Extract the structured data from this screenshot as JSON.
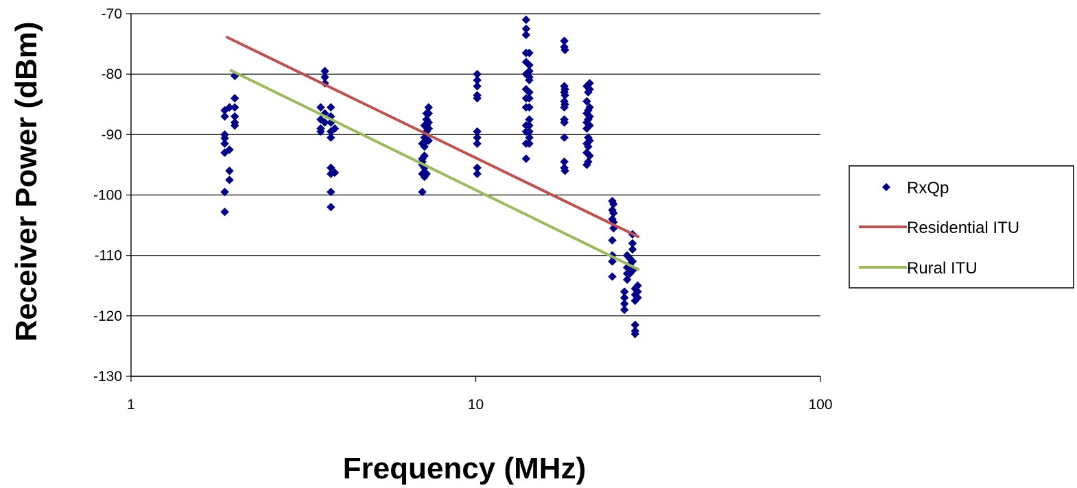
{
  "chart_data": {
    "type": "scatter",
    "xlabel": "Frequency (MHz)",
    "ylabel": "Receiver Power (dBm)",
    "xscale": "log",
    "xlim": [
      1,
      100
    ],
    "ylim": [
      -130,
      -70
    ],
    "x_ticks": [
      "1",
      "10",
      "100"
    ],
    "y_ticks": [
      "-70",
      "-80",
      "-90",
      "-100",
      "-110",
      "-120",
      "-130"
    ],
    "grid": "horizontal major gridlines",
    "legend_position": "right",
    "series": [
      {
        "name": "RxQp",
        "kind": "scatter",
        "color": "#00008B",
        "marker": "diamond",
        "points": [
          [
            1.87,
            -86.0
          ],
          [
            1.87,
            -87.0
          ],
          [
            1.87,
            -90.0
          ],
          [
            1.87,
            -90.6
          ],
          [
            1.87,
            -91.5
          ],
          [
            1.87,
            -93.0
          ],
          [
            1.87,
            -99.5
          ],
          [
            1.87,
            -102.8
          ],
          [
            1.93,
            -85.5
          ],
          [
            1.93,
            -92.5
          ],
          [
            1.93,
            -96.0
          ],
          [
            1.93,
            -97.5
          ],
          [
            2.0,
            -80.3
          ],
          [
            2.0,
            -84.0
          ],
          [
            2.0,
            -85.5
          ],
          [
            2.0,
            -87.0
          ],
          [
            2.0,
            -88.0
          ],
          [
            2.0,
            -88.5
          ],
          [
            3.55,
            -85.5
          ],
          [
            3.55,
            -87.5
          ],
          [
            3.55,
            -89.0
          ],
          [
            3.55,
            -89.5
          ],
          [
            3.65,
            -79.5
          ],
          [
            3.65,
            -80.5
          ],
          [
            3.65,
            -81.5
          ],
          [
            3.65,
            -86.5
          ],
          [
            3.65,
            -88.0
          ],
          [
            3.8,
            -85.5
          ],
          [
            3.8,
            -87.0
          ],
          [
            3.8,
            -88.0
          ],
          [
            3.8,
            -89.5
          ],
          [
            3.8,
            -90.5
          ],
          [
            3.8,
            -95.5
          ],
          [
            3.8,
            -96.5
          ],
          [
            3.8,
            -99.5
          ],
          [
            3.8,
            -102.0
          ],
          [
            3.9,
            -89.0
          ],
          [
            3.9,
            -96.3
          ],
          [
            7.0,
            -91.5
          ],
          [
            7.0,
            -94.0
          ],
          [
            7.0,
            -94.5
          ],
          [
            7.0,
            -95.0
          ],
          [
            7.0,
            -96.5
          ],
          [
            7.0,
            -99.5
          ],
          [
            7.1,
            -88.5
          ],
          [
            7.1,
            -90.5
          ],
          [
            7.1,
            -92.0
          ],
          [
            7.1,
            -93.5
          ],
          [
            7.1,
            -95.5
          ],
          [
            7.1,
            -97.0
          ],
          [
            7.2,
            -86.5
          ],
          [
            7.2,
            -87.5
          ],
          [
            7.2,
            -88.5
          ],
          [
            7.2,
            -89.5
          ],
          [
            7.2,
            -91.0
          ],
          [
            7.2,
            -96.5
          ],
          [
            7.3,
            -85.5
          ],
          [
            7.3,
            -86.5
          ],
          [
            7.3,
            -88.0
          ],
          [
            7.3,
            -89.0
          ],
          [
            7.3,
            -91.0
          ],
          [
            10.1,
            -80.0
          ],
          [
            10.1,
            -81.0
          ],
          [
            10.1,
            -82.0
          ],
          [
            10.1,
            -83.5
          ],
          [
            10.1,
            -84.0
          ],
          [
            10.1,
            -89.5
          ],
          [
            10.1,
            -90.5
          ],
          [
            10.1,
            -91.5
          ],
          [
            10.1,
            -95.5
          ],
          [
            10.1,
            -96.5
          ],
          [
            14.0,
            -71.0
          ],
          [
            14.0,
            -72.5
          ],
          [
            14.0,
            -73.5
          ],
          [
            14.0,
            -76.5
          ],
          [
            14.0,
            -78.0
          ],
          [
            14.0,
            -80.0
          ],
          [
            14.0,
            -82.5
          ],
          [
            14.0,
            -84.0
          ],
          [
            14.0,
            -85.5
          ],
          [
            14.0,
            -88.5
          ],
          [
            14.0,
            -89.5
          ],
          [
            14.0,
            -91.5
          ],
          [
            14.0,
            -94.0
          ],
          [
            14.3,
            -76.5
          ],
          [
            14.3,
            -78.5
          ],
          [
            14.3,
            -79.5
          ],
          [
            14.3,
            -80.5
          ],
          [
            14.3,
            -81.0
          ],
          [
            14.3,
            -83.0
          ],
          [
            14.3,
            -84.0
          ],
          [
            14.3,
            -85.5
          ],
          [
            14.3,
            -87.5
          ],
          [
            14.3,
            -88.5
          ],
          [
            14.3,
            -89.5
          ],
          [
            14.3,
            -90.5
          ],
          [
            14.3,
            -91.5
          ],
          [
            18.07,
            -74.5
          ],
          [
            18.07,
            -75.5
          ],
          [
            18.07,
            -82.0
          ],
          [
            18.07,
            -83.0
          ],
          [
            18.07,
            -84.5
          ],
          [
            18.07,
            -85.5
          ],
          [
            18.07,
            -87.5
          ],
          [
            18.07,
            -88.0
          ],
          [
            18.07,
            -90.5
          ],
          [
            18.07,
            -94.5
          ],
          [
            18.07,
            -95.5
          ],
          [
            18.15,
            -76.0
          ],
          [
            18.15,
            -82.5
          ],
          [
            18.15,
            -83.5
          ],
          [
            18.15,
            -85.0
          ],
          [
            18.15,
            -96.0
          ],
          [
            21.0,
            -82.0
          ],
          [
            21.0,
            -84.5
          ],
          [
            21.0,
            -86.5
          ],
          [
            21.0,
            -88.0
          ],
          [
            21.0,
            -89.0
          ],
          [
            21.0,
            -91.5
          ],
          [
            21.0,
            -93.0
          ],
          [
            21.0,
            -95.0
          ],
          [
            21.2,
            -83.0
          ],
          [
            21.2,
            -86.0
          ],
          [
            21.2,
            -87.5
          ],
          [
            21.2,
            -90.5
          ],
          [
            21.2,
            -92.0
          ],
          [
            21.2,
            -94.5
          ],
          [
            21.4,
            -81.5
          ],
          [
            21.4,
            -82.5
          ],
          [
            21.4,
            -85.5
          ],
          [
            21.4,
            -87.0
          ],
          [
            21.4,
            -88.5
          ],
          [
            21.4,
            -91.0
          ],
          [
            21.4,
            -93.5
          ],
          [
            24.9,
            -101.0
          ],
          [
            24.9,
            -102.5
          ],
          [
            24.9,
            -104.0
          ],
          [
            24.9,
            -107.5
          ],
          [
            24.9,
            -110.0
          ],
          [
            24.9,
            -111.0
          ],
          [
            24.9,
            -113.5
          ],
          [
            25.1,
            -101.5
          ],
          [
            25.1,
            -103.0
          ],
          [
            25.1,
            -104.5
          ],
          [
            25.1,
            -105.5
          ],
          [
            27.0,
            -116.0
          ],
          [
            27.0,
            -117.0
          ],
          [
            27.0,
            -118.0
          ],
          [
            27.0,
            -119.0
          ],
          [
            27.5,
            -110.0
          ],
          [
            27.5,
            -112.0
          ],
          [
            27.5,
            -113.0
          ],
          [
            27.5,
            -114.0
          ],
          [
            28.0,
            -110.5
          ],
          [
            28.0,
            -111.5
          ],
          [
            28.0,
            -113.0
          ],
          [
            28.5,
            -106.5
          ],
          [
            28.5,
            -108.0
          ],
          [
            28.5,
            -109.0
          ],
          [
            28.5,
            -111.0
          ],
          [
            28.5,
            -112.5
          ],
          [
            29.0,
            -115.5
          ],
          [
            29.0,
            -116.5
          ],
          [
            29.0,
            -117.5
          ],
          [
            29.0,
            -121.5
          ],
          [
            29.0,
            -122.5
          ],
          [
            29.0,
            -123.0
          ],
          [
            29.5,
            -115.0
          ],
          [
            29.5,
            -116.0
          ],
          [
            29.5,
            -117.0
          ]
        ]
      },
      {
        "name": "Residential ITU",
        "kind": "line",
        "color": "#C0504D",
        "points": [
          [
            1.9,
            -73.9
          ],
          [
            29.6,
            -106.9
          ]
        ]
      },
      {
        "name": "Rural ITU",
        "kind": "line",
        "color": "#9BBB59",
        "points": [
          [
            1.95,
            -79.4
          ],
          [
            29.6,
            -112.3
          ]
        ]
      }
    ]
  }
}
